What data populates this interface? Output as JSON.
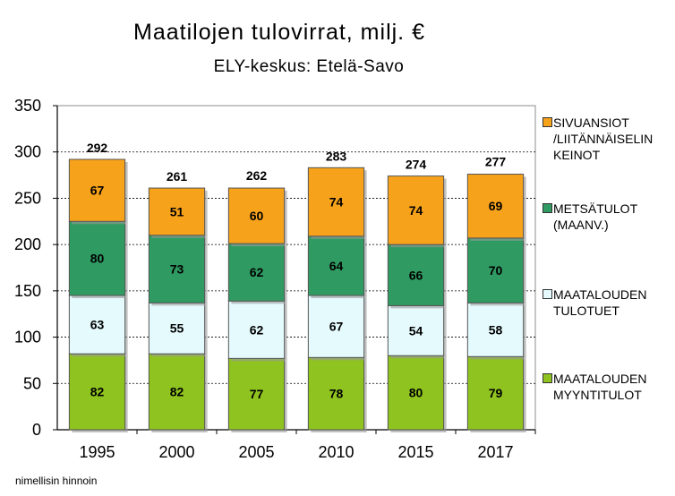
{
  "chart_data": {
    "type": "bar",
    "stacked": true,
    "title": "Maatilojen tulovirrat, milj. €",
    "subtitle": "ELY-keskus: Etelä-Savo",
    "categories": [
      "1995",
      "2000",
      "2005",
      "2010",
      "2015",
      "2017"
    ],
    "series": [
      {
        "name": "MAATALOUDEN MYYNTITULOT",
        "color": "#8fc31f",
        "values": [
          82,
          82,
          77,
          78,
          80,
          79
        ]
      },
      {
        "name": "MAATALOUDEN TULOTUET",
        "color": "#e4fafd",
        "values": [
          63,
          55,
          62,
          67,
          54,
          58
        ]
      },
      {
        "name": "METSÄTULOT (MAANV.)",
        "color": "#2f9a62",
        "values": [
          80,
          73,
          62,
          64,
          66,
          70
        ]
      },
      {
        "name": "SIVUANSIOT /LIITÄNNÄISELINKEINOT",
        "color": "#f7a21b",
        "values": [
          67,
          51,
          60,
          74,
          74,
          69
        ]
      }
    ],
    "totals": [
      292,
      261,
      262,
      283,
      274,
      277
    ],
    "ylim": [
      0,
      350
    ],
    "yticks": [
      0,
      50,
      100,
      150,
      200,
      250,
      300,
      350
    ],
    "grid": true,
    "legend_position": "right"
  },
  "legend": [
    {
      "lines": [
        "SIVUANSIOT",
        "/LIITÄNNÄISELIN",
        "KEINOT"
      ],
      "color": "#f7a21b"
    },
    {
      "lines": [
        "METSÄTULOT",
        "(MAANV.)"
      ],
      "color": "#2f9a62"
    },
    {
      "lines": [
        "MAATALOUDEN",
        "TULOTUET"
      ],
      "color": "#e4fafd"
    },
    {
      "lines": [
        "MAATALOUDEN",
        "MYYNTITULOT"
      ],
      "color": "#8fc31f"
    }
  ],
  "footnote": "nimellisin hinnoin"
}
